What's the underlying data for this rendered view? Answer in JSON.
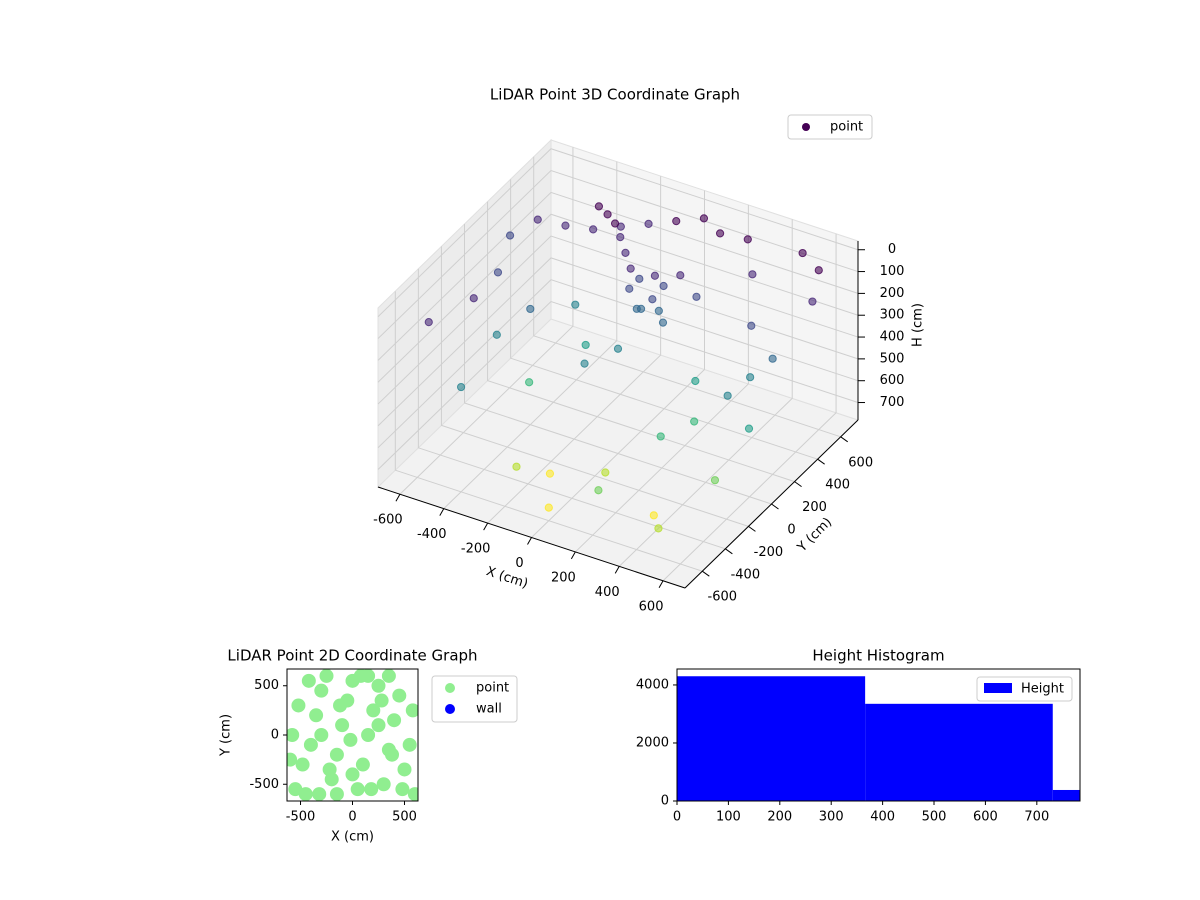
{
  "chart_data": [
    {
      "type": "scatter3d",
      "title": "LiDAR Point 3D Coordinate Graph",
      "xlabel": "X (cm)",
      "ylabel": "Y (cm)",
      "zlabel": "H (cm)",
      "xlim": [
        -700,
        700
      ],
      "ylim": [
        -750,
        750
      ],
      "zlim": [
        -40,
        780
      ],
      "z_inverted": true,
      "xticks": [
        -600,
        -400,
        -200,
        0,
        200,
        400,
        600
      ],
      "yticks": [
        -600,
        -400,
        -200,
        0,
        200,
        400,
        600
      ],
      "zticks": [
        0,
        100,
        200,
        300,
        400,
        500,
        600,
        700
      ],
      "colormap": "viridis",
      "grid": true,
      "legend_loc": "upper right",
      "series": [
        {
          "name": "point",
          "color": "#440154",
          "x": [
            -600,
            -500,
            -400,
            -300,
            -200,
            -100,
            0,
            100,
            200,
            300,
            400,
            500,
            600,
            650,
            550,
            450,
            350,
            250,
            150,
            50,
            -50,
            -150,
            -250,
            -350,
            -450,
            -550,
            -650,
            -600,
            -500,
            -400,
            -300,
            -200,
            -100,
            0,
            100,
            200,
            300,
            400,
            500,
            600,
            650,
            600,
            500,
            -100,
            -50,
            0,
            50,
            -80,
            20,
            -150,
            100,
            -200,
            -250,
            -300,
            -350,
            0,
            -30,
            60
          ],
          "y": [
            -500,
            -300,
            -600,
            -200,
            -500,
            -400,
            -600,
            -300,
            -550,
            -200,
            -450,
            -600,
            -300,
            -100,
            100,
            300,
            500,
            650,
            600,
            650,
            600,
            550,
            500,
            450,
            400,
            350,
            300,
            100,
            -100,
            0,
            200,
            100,
            -100,
            0,
            200,
            300,
            100,
            -100,
            0,
            200,
            450,
            600,
            650,
            300,
            280,
            320,
            300,
            250,
            260,
            350,
            350,
            400,
            450,
            480,
            500,
            200,
            220,
            240
          ],
          "z": [
            120,
            80,
            300,
            450,
            650,
            700,
            720,
            680,
            600,
            500,
            700,
            650,
            550,
            400,
            300,
            200,
            100,
            50,
            30,
            20,
            40,
            60,
            80,
            100,
            90,
            70,
            150,
            200,
            350,
            250,
            300,
            400,
            350,
            300,
            250,
            150,
            400,
            450,
            350,
            250,
            100,
            50,
            30,
            120,
            140,
            130,
            150,
            180,
            200,
            90,
            110,
            60,
            40,
            30,
            20,
            220,
            240,
            230
          ]
        }
      ]
    },
    {
      "type": "scatter",
      "title": "LiDAR Point 2D Coordinate Graph",
      "xlabel": "X (cm)",
      "ylabel": "Y (cm)",
      "xlim": [
        -630,
        630
      ],
      "ylim": [
        -670,
        670
      ],
      "xticks": [
        -500,
        0,
        500
      ],
      "yticks": [
        -500,
        0,
        500
      ],
      "legend_loc": "outside upper right",
      "series": [
        {
          "name": "point",
          "color": "#90ee90",
          "x": [
            -550,
            -480,
            -400,
            -350,
            -300,
            -250,
            -200,
            -150,
            -100,
            -50,
            0,
            50,
            100,
            150,
            200,
            250,
            300,
            350,
            400,
            450,
            500,
            550,
            580,
            -580,
            -520,
            -420,
            -320,
            -220,
            -120,
            -20,
            80,
            180,
            280,
            380,
            480,
            -450,
            -150,
            150,
            350,
            -300,
            0,
            250,
            -600,
            600
          ],
          "y": [
            -550,
            -300,
            -100,
            200,
            450,
            600,
            -450,
            -200,
            100,
            350,
            550,
            -550,
            -300,
            0,
            250,
            500,
            -500,
            -150,
            150,
            400,
            -350,
            -100,
            250,
            0,
            300,
            550,
            -600,
            -350,
            300,
            -50,
            600,
            -550,
            350,
            -200,
            -550,
            -600,
            -600,
            600,
            600,
            0,
            -400,
            100,
            -250,
            -600
          ]
        },
        {
          "name": "wall",
          "color": "#0000ff",
          "x": [],
          "y": []
        }
      ]
    },
    {
      "type": "histogram",
      "title": "Height Histogram",
      "label": "Height",
      "color": "#0000ff",
      "bins": [
        0,
        366,
        731,
        784
      ],
      "values": [
        4300,
        3350,
        380
      ],
      "xlim": [
        0,
        784
      ],
      "ylim": [
        0,
        4550
      ],
      "xticks": [
        0,
        100,
        200,
        300,
        400,
        500,
        600,
        700
      ],
      "yticks": [
        0,
        2000,
        4000
      ],
      "legend_loc": "upper right"
    }
  ]
}
